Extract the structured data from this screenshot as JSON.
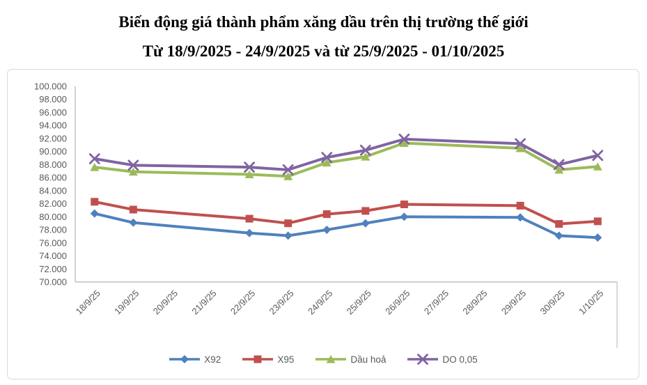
{
  "header": {
    "title_line1": "Biến động giá thành phẩm xăng dầu trên thị trường thế giới",
    "title_line2": "Từ 18/9/2025 - 24/9/2025 và từ 25/9/2025 - 01/10/2025"
  },
  "colors": {
    "x92": "#4F81BD",
    "x95": "#C0504D",
    "dau_hoa": "#9BBB59",
    "do_005": "#8064A2",
    "axis_line": "#BFBFBF",
    "axis_text": "#595959",
    "panel_border": "#D9D9D9"
  },
  "chart_data": {
    "type": "line",
    "title": "Biến động giá thành phẩm xăng dầu trên thị trường thế giới. Từ 18/9/2025 - 24/9/2025 và từ 25/9/2025 - 01/10/2025",
    "categories": [
      "18/9/25",
      "19/9/25",
      "20/9/25",
      "21/9/25",
      "22/9/25",
      "23/9/25",
      "24/9/25",
      "25/9/25",
      "26/9/25",
      "27/9/25",
      "28/9/25",
      "29/9/25",
      "30/9/25",
      "1/10/25"
    ],
    "y_axis": {
      "min": 70000,
      "max": 100000,
      "step": 2000,
      "tick_labels": [
        "100.000",
        "98.000",
        "96.000",
        "94.000",
        "92.000",
        "90.000",
        "88.000",
        "86.000",
        "84.000",
        "82.000",
        "80.000",
        "78.000",
        "76.000",
        "74.000",
        "72.000",
        "70.000"
      ]
    },
    "gridlines": false,
    "legend_position": "bottom",
    "series": [
      {
        "name": "X92",
        "marker": "diamond",
        "color": "#4F81BD",
        "points": [
          [
            "18/9/25",
            80500
          ],
          [
            "19/9/25",
            79100
          ],
          [
            "22/9/25",
            77500
          ],
          [
            "23/9/25",
            77100
          ],
          [
            "24/9/25",
            78000
          ],
          [
            "25/9/25",
            79000
          ],
          [
            "26/9/25",
            80000
          ],
          [
            "29/9/25",
            79900
          ],
          [
            "30/9/25",
            77100
          ],
          [
            "1/10/25",
            76800
          ]
        ]
      },
      {
        "name": "X95",
        "marker": "square",
        "color": "#C0504D",
        "points": [
          [
            "18/9/25",
            82300
          ],
          [
            "19/9/25",
            81100
          ],
          [
            "22/9/25",
            79700
          ],
          [
            "23/9/25",
            79000
          ],
          [
            "24/9/25",
            80400
          ],
          [
            "25/9/25",
            80900
          ],
          [
            "26/9/25",
            81900
          ],
          [
            "29/9/25",
            81700
          ],
          [
            "30/9/25",
            78900
          ],
          [
            "1/10/25",
            79300
          ]
        ]
      },
      {
        "name": "Dầu hoả",
        "marker": "triangle",
        "color": "#9BBB59",
        "points": [
          [
            "18/9/25",
            87600
          ],
          [
            "19/9/25",
            86900
          ],
          [
            "22/9/25",
            86500
          ],
          [
            "23/9/25",
            86200
          ],
          [
            "24/9/25",
            88300
          ],
          [
            "25/9/25",
            89200
          ],
          [
            "26/9/25",
            91300
          ],
          [
            "29/9/25",
            90500
          ],
          [
            "30/9/25",
            87200
          ],
          [
            "1/10/25",
            87700
          ]
        ]
      },
      {
        "name": "DO 0,05",
        "marker": "xcross",
        "color": "#8064A2",
        "points": [
          [
            "18/9/25",
            88900
          ],
          [
            "19/9/25",
            87900
          ],
          [
            "22/9/25",
            87600
          ],
          [
            "23/9/25",
            87200
          ],
          [
            "24/9/25",
            89100
          ],
          [
            "25/9/25",
            90200
          ],
          [
            "26/9/25",
            91900
          ],
          [
            "29/9/25",
            91200
          ],
          [
            "30/9/25",
            88000
          ],
          [
            "1/10/25",
            89400
          ]
        ]
      }
    ]
  }
}
